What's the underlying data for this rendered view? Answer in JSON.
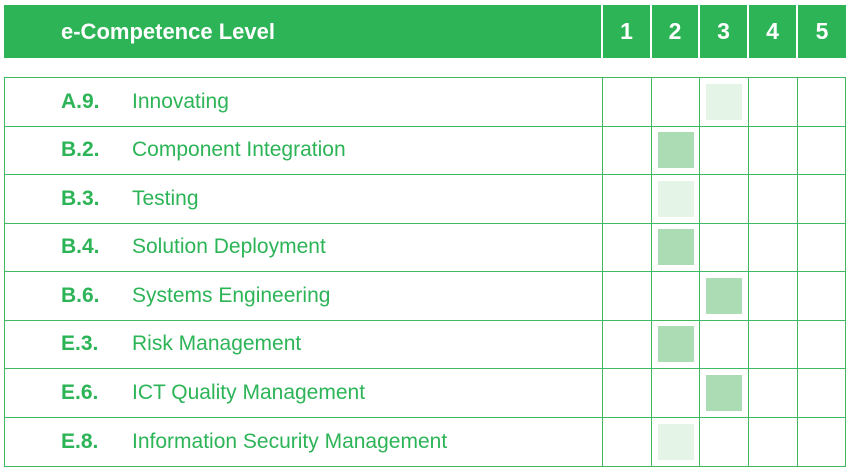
{
  "header": {
    "title": "e-Competence Level",
    "levels": [
      "1",
      "2",
      "3",
      "4",
      "5"
    ]
  },
  "colors": {
    "header_bg": "#2db457",
    "text": "#2db457",
    "border": "#40b963",
    "mark_strong": "#acdcb3",
    "mark_light": "#e4f4e6"
  },
  "rows": [
    {
      "code": "A.9.",
      "name": "Innovating",
      "level": 3,
      "intensity": "light"
    },
    {
      "code": "B.2.",
      "name": "Component Integration",
      "level": 2,
      "intensity": "strong"
    },
    {
      "code": "B.3.",
      "name": "Testing",
      "level": 2,
      "intensity": "light"
    },
    {
      "code": "B.4.",
      "name": "Solution Deployment",
      "level": 2,
      "intensity": "strong"
    },
    {
      "code": "B.6.",
      "name": "Systems Engineering",
      "level": 3,
      "intensity": "strong"
    },
    {
      "code": "E.3.",
      "name": "Risk Management",
      "level": 2,
      "intensity": "strong"
    },
    {
      "code": "E.6.",
      "name": "ICT Quality Management",
      "level": 3,
      "intensity": "strong"
    },
    {
      "code": "E.8.",
      "name": "Information Security Management",
      "level": 2,
      "intensity": "light"
    }
  ]
}
